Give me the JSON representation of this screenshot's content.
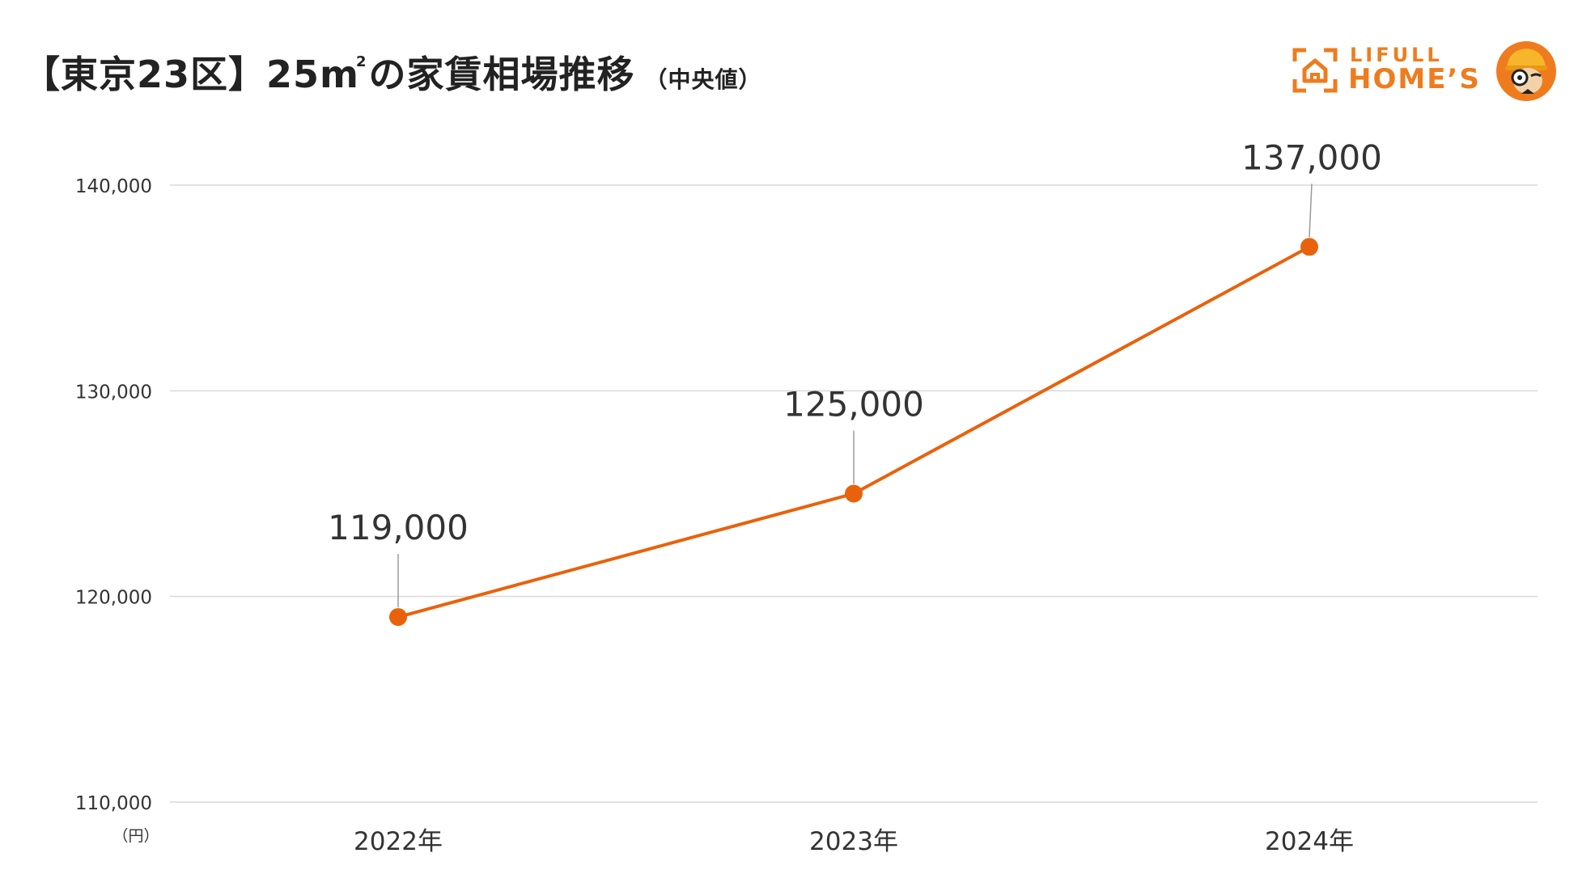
{
  "header": {
    "title_main": "【東京23区】25㎡の家賃相場推移",
    "title_main_a": "【東京23区】25m",
    "title_sup": "2",
    "title_main_b": "の家賃相場推移",
    "title_sub": "（中央値）"
  },
  "logo": {
    "brand_top": "LIFULL",
    "brand_main": "HOME’S",
    "accent_color": "#ee7c1e"
  },
  "chart_data": {
    "type": "line",
    "categories": [
      "2022年",
      "2023年",
      "2024年"
    ],
    "series": [
      {
        "values": [
          119000,
          125000,
          137000
        ],
        "color": "#e8620c"
      }
    ],
    "data_labels": [
      "119,000",
      "125,000",
      "137,000"
    ],
    "yticks": [
      110000,
      120000,
      130000,
      140000
    ],
    "ytick_labels": [
      "110,000",
      "120,000",
      "130,000",
      "140,000"
    ],
    "ylim": [
      110000,
      140000
    ],
    "yunit": "（円）",
    "xlabel": "",
    "ylabel": "",
    "grid": true,
    "legend": false
  }
}
